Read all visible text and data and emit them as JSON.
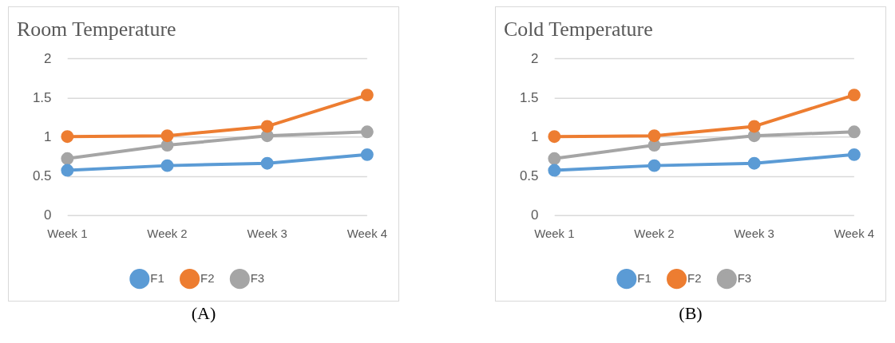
{
  "chart_data": [
    {
      "type": "line",
      "title": "Room Temperature",
      "categories": [
        "Week 1",
        "Week 2",
        "Week 3",
        "Week 4"
      ],
      "series": [
        {
          "name": "F1",
          "color": "#5b9bd5",
          "values": [
            0.58,
            0.64,
            0.67,
            0.78
          ]
        },
        {
          "name": "F2",
          "color": "#ed7d31",
          "values": [
            1.01,
            1.02,
            1.14,
            1.54
          ]
        },
        {
          "name": "F3",
          "color": "#a5a5a5",
          "values": [
            0.73,
            0.9,
            1.02,
            1.07
          ]
        }
      ],
      "ylim": [
        0,
        2
      ],
      "yticks": [
        0,
        0.5,
        1,
        1.5,
        2
      ],
      "grid": "y",
      "legend": "bottom",
      "marker": "circle",
      "annotations": [
        "(A)"
      ]
    },
    {
      "type": "line",
      "title": "Cold Temperature",
      "categories": [
        "Week 1",
        "Week 2",
        "Week 3",
        "Week 4"
      ],
      "series": [
        {
          "name": "F1",
          "color": "#5b9bd5",
          "values": [
            0.58,
            0.64,
            0.67,
            0.78
          ]
        },
        {
          "name": "F2",
          "color": "#ed7d31",
          "values": [
            1.01,
            1.02,
            1.14,
            1.54
          ]
        },
        {
          "name": "F3",
          "color": "#a5a5a5",
          "values": [
            0.73,
            0.9,
            1.02,
            1.07
          ]
        }
      ],
      "ylim": [
        0,
        2
      ],
      "yticks": [
        0,
        0.5,
        1,
        1.5,
        2
      ],
      "grid": "y",
      "legend": "bottom",
      "marker": "circle",
      "annotations": [
        "(B)"
      ]
    }
  ]
}
